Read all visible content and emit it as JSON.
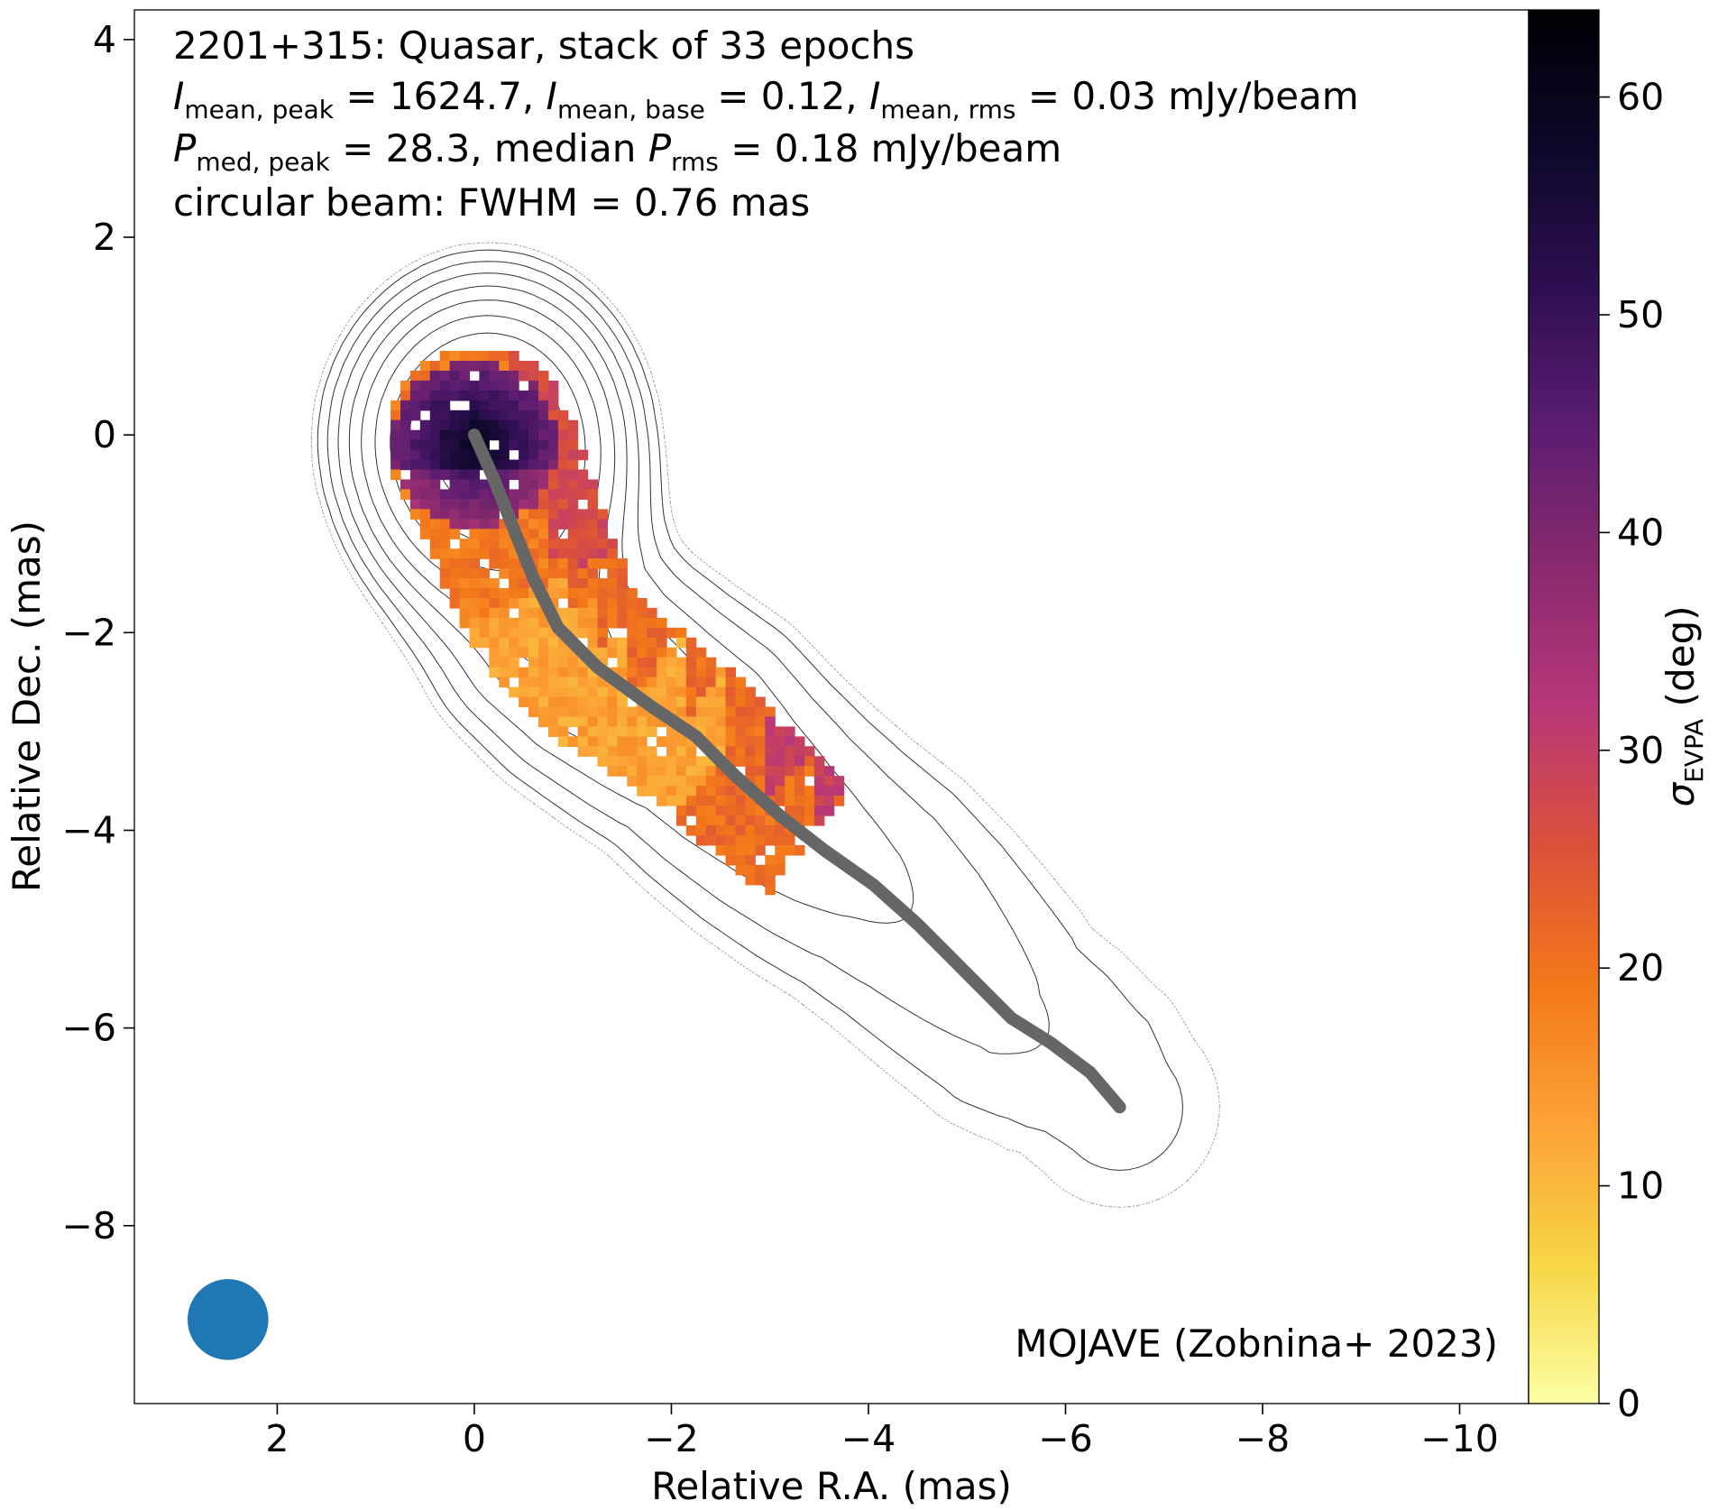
{
  "chart_data": {
    "type": "heatmap",
    "title": "2201+315: Quasar, stack of 33 epochs",
    "annotations": {
      "line2": {
        "a_sym": "I",
        "a_sub": "mean, peak",
        "a_val": " = 1624.7, ",
        "b_sym": "I",
        "b_sub": "mean, base",
        "b_val": " = 0.12, ",
        "c_sym": "I",
        "c_sub": "mean, rms",
        "c_val": " = 0.03 mJy/beam"
      },
      "line3": {
        "a_sym": "P",
        "a_sub": "med, peak",
        "a_val": " = 28.3, median ",
        "b_sym": "P",
        "b_sub": "rms",
        "b_val": " = 0.18 mJy/beam"
      },
      "line4": "circular beam: FWHM = 0.76 mas",
      "credit": "MOJAVE (Zobnina+ 2023)"
    },
    "xlabel": "Relative R.A. (mas)",
    "ylabel": "Relative Dec. (mas)",
    "xlim": [
      3.45,
      -10.7
    ],
    "ylim": [
      -9.8,
      4.3
    ],
    "x_ticks": [
      2,
      0,
      -2,
      -4,
      -6,
      -8,
      -10
    ],
    "y_ticks": [
      4,
      2,
      0,
      -2,
      -4,
      -6,
      -8
    ],
    "x_tick_labels": [
      "2",
      "0",
      "−2",
      "−4",
      "−6",
      "−8",
      "−10"
    ],
    "y_tick_labels": [
      "4",
      "2",
      "0",
      "−2",
      "−4",
      "−6",
      "−8"
    ],
    "colorbar": {
      "label_sym": "σ",
      "label_sub": "EVPA",
      "label_rest": " (deg)",
      "range": [
        0,
        64
      ],
      "ticks": [
        0,
        10,
        20,
        30,
        40,
        50,
        60
      ],
      "tick_labels": [
        "0",
        "10",
        "20",
        "30",
        "40",
        "50",
        "60"
      ],
      "colormap": "inferno_r",
      "stops": [
        "#fcffa4",
        "#f6d645",
        "#fca236",
        "#f37819",
        "#db503b",
        "#b73779",
        "#892a6e",
        "#5c1d70",
        "#2e0f52",
        "#0d0829",
        "#000004"
      ]
    },
    "ridge_line": {
      "color": "#666666",
      "points": [
        [
          0.0,
          0.0
        ],
        [
          -0.2,
          -0.45
        ],
        [
          -0.4,
          -0.95
        ],
        [
          -0.6,
          -1.45
        ],
        [
          -0.85,
          -1.95
        ],
        [
          -1.25,
          -2.35
        ],
        [
          -1.8,
          -2.75
        ],
        [
          -2.25,
          -3.05
        ],
        [
          -2.65,
          -3.45
        ],
        [
          -3.1,
          -3.85
        ],
        [
          -3.55,
          -4.2
        ],
        [
          -4.05,
          -4.55
        ],
        [
          -4.5,
          -4.95
        ],
        [
          -4.95,
          -5.4
        ],
        [
          -5.45,
          -5.9
        ],
        [
          -5.85,
          -6.15
        ],
        [
          -6.25,
          -6.45
        ],
        [
          -6.55,
          -6.8
        ]
      ]
    },
    "beam": {
      "center": [
        2.5,
        -8.95
      ],
      "fwhm": 0.76,
      "color": "#1f77b4"
    },
    "contours": {
      "color": "#333333",
      "negative_color": "#999999",
      "levels": 11
    }
  }
}
